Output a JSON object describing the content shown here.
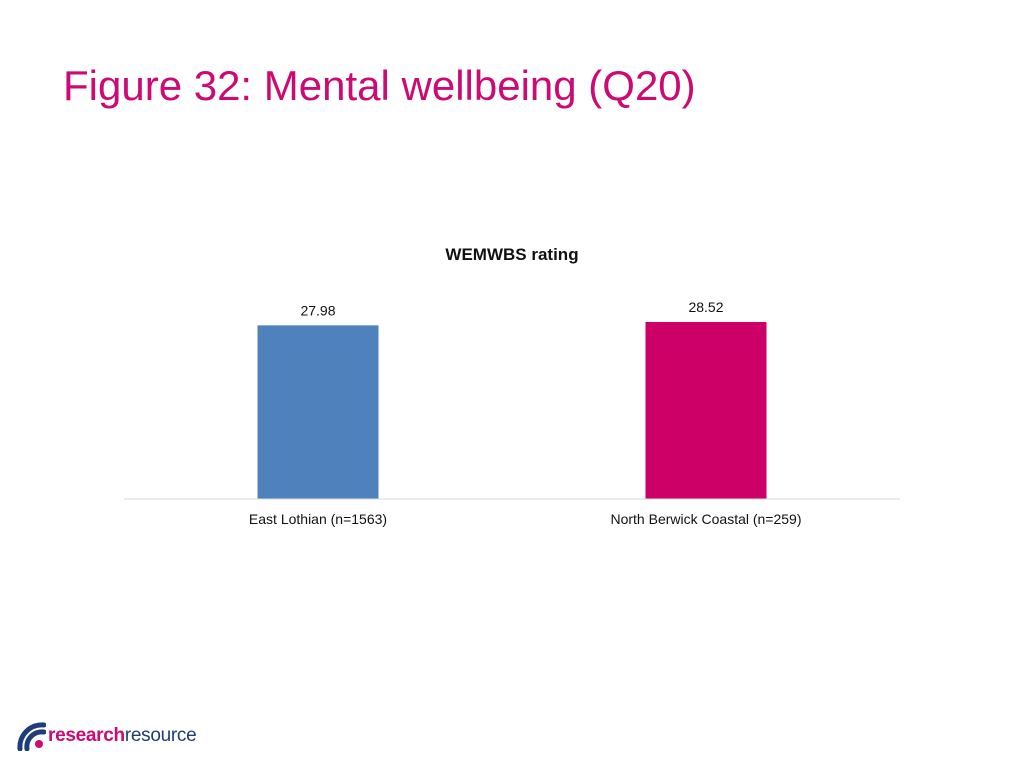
{
  "page": {
    "title": "Figure 32: Mental wellbeing (Q20)"
  },
  "colors": {
    "title": "#cc0a73",
    "series_east_lothian": "#4f81bd",
    "series_north_berwick": "#cc0066",
    "axis": "#d9d9d9",
    "logo_accent": "#cc0a73",
    "logo_main": "#1f3d7a"
  },
  "chart_data": {
    "type": "bar",
    "title": "WEMWBS rating",
    "categories": [
      "East Lothian (n=1563)",
      "North Berwick Coastal (n=259)"
    ],
    "values": [
      27.98,
      28.52
    ],
    "data_labels": [
      "27.98",
      "28.52"
    ],
    "bar_colors": [
      "#4f81bd",
      "#cc0066"
    ],
    "xlabel": "",
    "ylabel": "",
    "ylim": [
      0,
      28.52
    ],
    "grid": false,
    "legend": "none"
  },
  "logo": {
    "icon": "research-resource-logo-icon",
    "part_a": "research",
    "part_b": "resource"
  }
}
